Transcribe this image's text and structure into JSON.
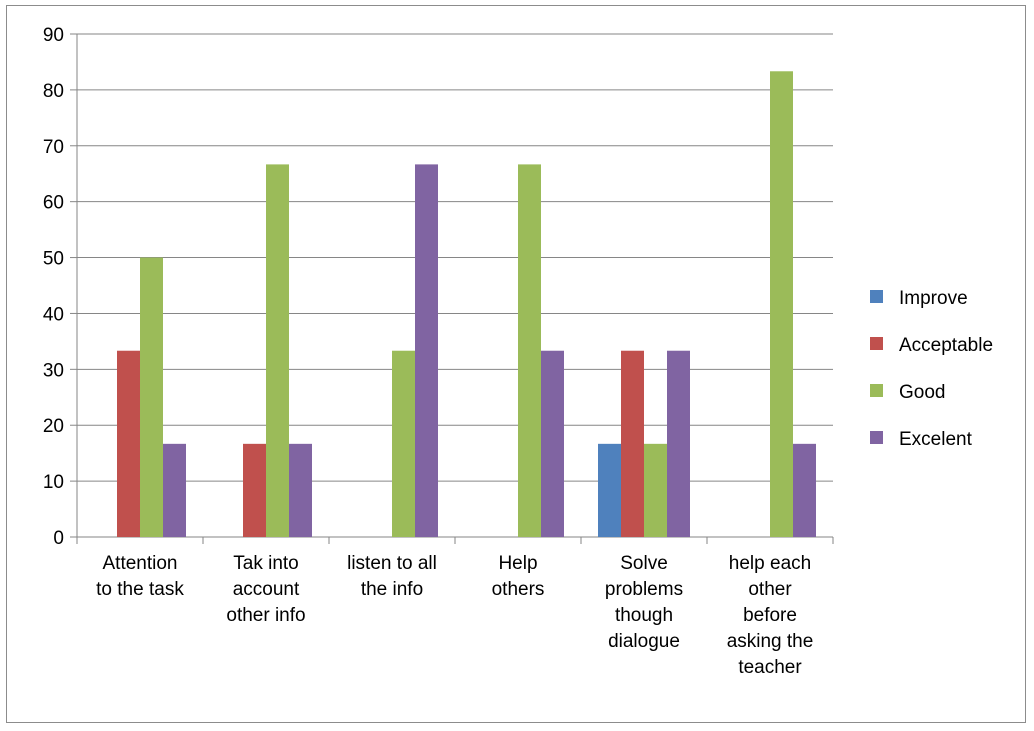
{
  "chart_data": {
    "type": "bar",
    "categories": [
      [
        "Attention",
        "to the task"
      ],
      [
        "Tak into",
        "account",
        "other info"
      ],
      [
        "listen to all",
        "the info"
      ],
      [
        "Help",
        "others"
      ],
      [
        "Solve",
        "problems",
        "though",
        "dialogue"
      ],
      [
        "help each",
        "other",
        "before",
        "asking the",
        "teacher"
      ]
    ],
    "series": [
      {
        "name": "Improve",
        "color": "#4f81bd",
        "values": [
          0,
          0,
          0,
          0,
          16.67,
          0
        ]
      },
      {
        "name": "Acceptable",
        "color": "#c0504d",
        "values": [
          33.33,
          16.67,
          0,
          0,
          33.33,
          0
        ]
      },
      {
        "name": "Good",
        "color": "#9bbb59",
        "values": [
          50,
          66.67,
          33.33,
          66.67,
          16.67,
          83.33
        ]
      },
      {
        "name": "Excelent",
        "color": "#8064a2",
        "values": [
          16.67,
          16.67,
          66.67,
          33.33,
          33.33,
          16.67
        ]
      }
    ],
    "ylim": [
      0,
      90
    ],
    "yticks": [
      0,
      10,
      20,
      30,
      40,
      50,
      60,
      70,
      80,
      90
    ],
    "grid": true,
    "legend": "right"
  }
}
